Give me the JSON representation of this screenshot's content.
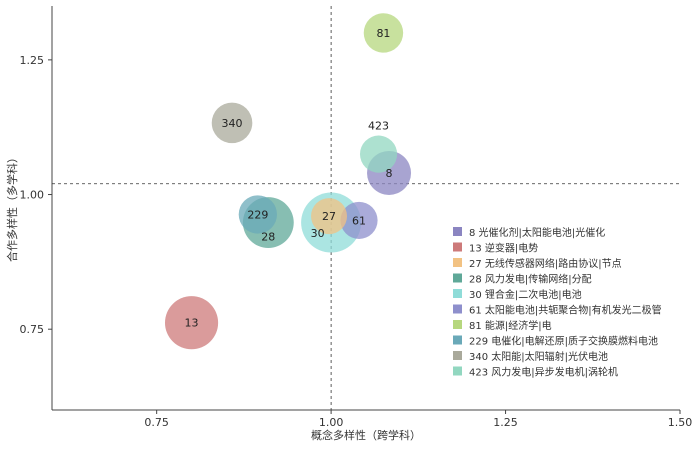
{
  "chart_data": {
    "type": "scatter",
    "subtype": "bubble",
    "title": "",
    "xlabel": "概念多样性（跨学科）",
    "ylabel": "合作多样性（多学科）",
    "xlim": [
      0.6,
      1.5
    ],
    "ylim": [
      0.6,
      1.35
    ],
    "xticks": [
      0.75,
      1.0,
      1.25,
      1.5
    ],
    "xtick_labels": [
      "0.75",
      "1.00",
      "1.25",
      "1.50"
    ],
    "yticks": [
      0.75,
      1.0,
      1.25
    ],
    "ytick_labels": [
      "0.75",
      "1.00",
      "1.25"
    ],
    "reference_lines": {
      "x": 1.0,
      "y": 1.02
    },
    "grid": false,
    "legend_position": "bottom-right",
    "series": [
      {
        "id": "8",
        "name": "8 光催化剂|太阳能电池|光催化",
        "x": 1.083,
        "y": 1.04,
        "size": 0.95,
        "color": "#8b85c1",
        "label": "8",
        "label_pos": "center"
      },
      {
        "id": "13",
        "name": "13 逆变器|电势",
        "x": 0.8,
        "y": 0.762,
        "size": 1.35,
        "color": "#cd7a7a",
        "label": "13",
        "label_pos": "center"
      },
      {
        "id": "27",
        "name": "27 无线传感器网络|路由协议|节点",
        "x": 0.997,
        "y": 0.96,
        "size": 0.6,
        "color": "#f2c283",
        "label": "27",
        "label_pos": "center"
      },
      {
        "id": "28",
        "name": "28 风力发电|传输网络|分配",
        "x": 0.91,
        "y": 0.948,
        "size": 1.25,
        "color": "#5fa898",
        "label": "28",
        "label_pos": "below"
      },
      {
        "id": "30",
        "name": "30 锂合金|二次电池|电池",
        "x": 1.0,
        "y": 0.948,
        "size": 1.65,
        "color": "#8fdcd8",
        "label": "30",
        "label_pos": "below-left"
      },
      {
        "id": "61",
        "name": "61 太阳能电池|共轭聚合物|有机发光二极管",
        "x": 1.04,
        "y": 0.952,
        "size": 0.65,
        "color": "#8e8fcc",
        "label": "61",
        "label_pos": "center"
      },
      {
        "id": "81",
        "name": "81 能源|经济学|电",
        "x": 1.075,
        "y": 1.3,
        "size": 0.75,
        "color": "#b6d77e",
        "label": "81",
        "label_pos": "center"
      },
      {
        "id": "229",
        "name": "229 电催化|电解还原|质子交换膜燃料电池",
        "x": 0.895,
        "y": 0.963,
        "size": 0.7,
        "color": "#6aa9b8",
        "label": "229",
        "label_pos": "center"
      },
      {
        "id": "340",
        "name": "340 太阳能|太阳辐射|光伏电池",
        "x": 0.858,
        "y": 1.133,
        "size": 0.8,
        "color": "#a9a99b",
        "label": "340",
        "label_pos": "center"
      },
      {
        "id": "423",
        "name": "423 风力发电|异步发电机|涡轮机",
        "x": 1.068,
        "y": 1.075,
        "size": 0.65,
        "color": "#92d7c0",
        "label": "423",
        "label_pos": "above"
      }
    ]
  }
}
